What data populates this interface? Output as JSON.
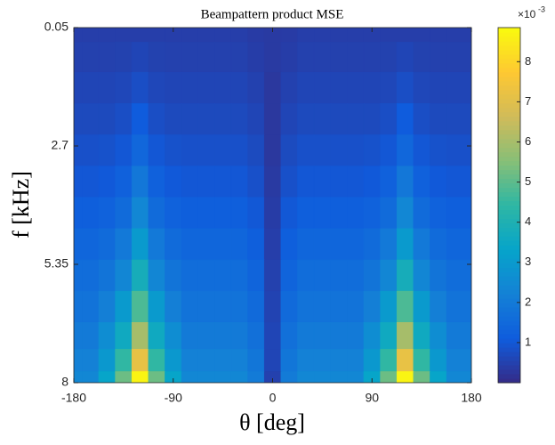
{
  "chart_data": {
    "type": "heatmap",
    "title": "Beampattern product MSE",
    "x_label": "θ [deg]",
    "y_label": "f [kHz]",
    "x": [
      -180,
      -165,
      -150,
      -135,
      -120,
      -105,
      -90,
      -75,
      -60,
      -45,
      -30,
      -15,
      0,
      15,
      30,
      45,
      60,
      75,
      90,
      105,
      120,
      135,
      150,
      165,
      180
    ],
    "y": [
      0.05,
      0.7,
      1.4,
      2.1,
      2.8,
      3.5,
      4.2,
      4.9,
      5.6,
      6.3,
      7.0,
      7.5,
      8
    ],
    "values": [
      [
        0.45,
        0.45,
        0.45,
        0.45,
        0.45,
        0.45,
        0.45,
        0.45,
        0.45,
        0.45,
        0.45,
        0.38,
        0.35,
        0.38,
        0.45,
        0.45,
        0.45,
        0.45,
        0.45,
        0.45,
        0.45,
        0.45,
        0.45,
        0.45,
        0.45
      ],
      [
        0.5,
        0.5,
        0.5,
        0.52,
        0.6,
        0.52,
        0.5,
        0.5,
        0.5,
        0.5,
        0.5,
        0.43,
        0.35,
        0.43,
        0.5,
        0.5,
        0.5,
        0.5,
        0.5,
        0.52,
        0.6,
        0.52,
        0.5,
        0.5,
        0.5
      ],
      [
        0.6,
        0.6,
        0.6,
        0.64,
        0.8,
        0.64,
        0.6,
        0.6,
        0.6,
        0.6,
        0.6,
        0.51,
        0.3,
        0.51,
        0.6,
        0.6,
        0.6,
        0.6,
        0.6,
        0.64,
        0.8,
        0.64,
        0.6,
        0.6,
        0.6
      ],
      [
        0.7,
        0.7,
        0.7,
        0.8,
        1.1,
        0.8,
        0.7,
        0.7,
        0.7,
        0.7,
        0.7,
        0.6,
        0.3,
        0.6,
        0.7,
        0.7,
        0.7,
        0.7,
        0.7,
        0.8,
        1.1,
        0.8,
        0.7,
        0.7,
        0.7
      ],
      [
        0.85,
        0.85,
        0.88,
        1.0,
        1.45,
        1.0,
        0.88,
        0.85,
        0.85,
        0.85,
        0.85,
        0.72,
        0.3,
        0.72,
        0.85,
        0.85,
        0.85,
        0.85,
        0.88,
        1.0,
        1.45,
        1.0,
        0.88,
        0.85,
        0.85
      ],
      [
        1.0,
        1.0,
        1.05,
        1.27,
        1.9,
        1.27,
        1.05,
        1.0,
        1.0,
        1.0,
        1.0,
        0.85,
        0.35,
        0.85,
        1.0,
        1.0,
        1.0,
        1.0,
        1.05,
        1.27,
        1.9,
        1.27,
        1.05,
        1.0,
        1.0
      ],
      [
        1.2,
        1.2,
        1.3,
        1.56,
        2.4,
        1.56,
        1.3,
        1.2,
        1.2,
        1.2,
        1.2,
        1.02,
        0.4,
        1.02,
        1.2,
        1.2,
        1.2,
        1.2,
        1.3,
        1.56,
        2.4,
        1.56,
        1.3,
        1.2,
        1.2
      ],
      [
        1.4,
        1.4,
        1.56,
        1.96,
        3.0,
        1.96,
        1.56,
        1.4,
        1.4,
        1.4,
        1.4,
        1.19,
        0.45,
        1.19,
        1.4,
        1.4,
        1.4,
        1.4,
        1.56,
        1.96,
        3.0,
        1.96,
        1.56,
        1.4,
        1.4
      ],
      [
        1.6,
        1.6,
        1.82,
        2.37,
        3.8,
        2.37,
        1.82,
        1.6,
        1.6,
        1.6,
        1.6,
        1.36,
        0.5,
        1.36,
        1.6,
        1.6,
        1.6,
        1.6,
        1.82,
        2.37,
        3.8,
        2.37,
        1.82,
        1.6,
        1.6
      ],
      [
        1.8,
        1.8,
        2.16,
        3.0,
        4.8,
        3.0,
        2.16,
        1.8,
        1.8,
        1.8,
        1.8,
        1.53,
        0.55,
        1.53,
        1.8,
        1.8,
        1.8,
        1.8,
        2.16,
        3.0,
        4.8,
        3.0,
        2.16,
        1.8,
        1.8
      ],
      [
        2.0,
        2.0,
        2.6,
        3.6,
        6.0,
        3.6,
        2.6,
        2.0,
        2.0,
        2.0,
        2.0,
        1.7,
        0.6,
        1.7,
        2.0,
        2.0,
        2.0,
        2.0,
        2.6,
        3.6,
        6.0,
        3.6,
        2.6,
        2.0,
        2.0
      ],
      [
        2.2,
        2.2,
        2.95,
        4.45,
        7.2,
        4.45,
        2.95,
        2.2,
        2.2,
        2.2,
        2.2,
        1.87,
        0.6,
        1.87,
        2.2,
        2.2,
        2.2,
        2.2,
        2.95,
        4.45,
        7.2,
        4.45,
        2.95,
        2.2,
        2.2
      ],
      [
        2.4,
        2.4,
        3.35,
        5.2,
        8.7,
        5.2,
        3.35,
        2.4,
        2.4,
        2.4,
        2.4,
        2.04,
        0.5,
        2.04,
        2.4,
        2.4,
        2.4,
        2.4,
        3.35,
        5.2,
        8.7,
        5.2,
        3.35,
        2.4,
        2.4
      ]
    ],
    "xlim": [
      -180,
      180
    ],
    "xticks": [
      -180,
      -90,
      0,
      90,
      180
    ],
    "ylim": [
      0.05,
      8
    ],
    "yticks": [
      0.05,
      2.7,
      5.35,
      8
    ],
    "y_reversed": true,
    "clim": [
      0,
      8.85
    ],
    "cticks": [
      1,
      2,
      3,
      4,
      5,
      6,
      7,
      8
    ],
    "colorbar_multiplier": "×10",
    "colorbar_exponent": "-3",
    "colormap": [
      "#352a87",
      "#0f5cdd",
      "#1481d6",
      "#06a4ca",
      "#2eb7a4",
      "#87bf77",
      "#d1bb59",
      "#fec832",
      "#f9fb0e"
    ]
  }
}
